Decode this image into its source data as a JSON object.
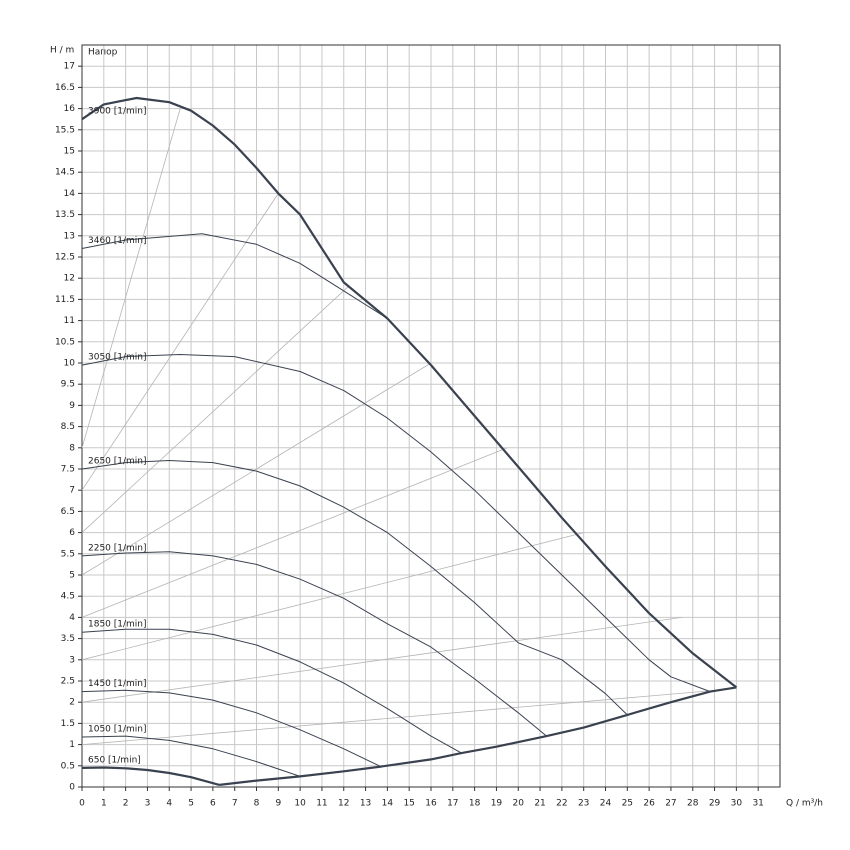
{
  "chart_data": {
    "type": "line",
    "title": "Напор",
    "y_label": "H / m",
    "x_label": "Q / m³/h",
    "xlim": [
      0,
      32
    ],
    "ylim": [
      0,
      17.5
    ],
    "xticks": [
      0,
      1,
      2,
      3,
      4,
      5,
      6,
      7,
      8,
      9,
      10,
      11,
      12,
      13,
      14,
      15,
      16,
      17,
      18,
      19,
      20,
      21,
      22,
      23,
      24,
      25,
      26,
      27,
      28,
      29,
      30,
      31
    ],
    "yticks": [
      0,
      0.5,
      1,
      1.5,
      2,
      2.5,
      3,
      3.5,
      4,
      4.5,
      5,
      5.5,
      6,
      6.5,
      7,
      7.5,
      8,
      8.5,
      9,
      9.5,
      10,
      10.5,
      11,
      11.5,
      12,
      12.5,
      13,
      13.5,
      14,
      14.5,
      15,
      15.5,
      16,
      16.5,
      17
    ],
    "grid": true,
    "series": [
      {
        "name": "3900 [1/min]",
        "color": "#3a4250",
        "line_width": 2.2,
        "x": [
          0,
          1,
          2.5,
          4,
          5,
          6,
          7,
          8,
          9,
          10,
          11,
          12,
          14,
          16,
          18,
          20,
          22,
          24,
          26,
          28,
          30
        ],
        "values": [
          15.75,
          16.1,
          16.25,
          16.15,
          15.95,
          15.6,
          15.15,
          14.6,
          14.0,
          13.5,
          12.7,
          11.9,
          11.05,
          9.95,
          8.75,
          7.55,
          6.35,
          5.2,
          4.1,
          3.15,
          2.35
        ]
      },
      {
        "name": "3460 [1/min]",
        "color": "#3a4250",
        "line_width": 1,
        "x": [
          0,
          2,
          5.5,
          8,
          10,
          12,
          14
        ],
        "values": [
          12.7,
          12.9,
          13.05,
          12.8,
          12.35,
          11.7,
          11.05
        ]
      },
      {
        "name": "3050 [1/min]",
        "color": "#3a4250",
        "line_width": 1,
        "x": [
          0,
          2,
          4.5,
          7,
          10,
          12,
          14,
          16,
          18,
          20,
          22,
          24,
          26,
          27,
          28.8
        ],
        "values": [
          9.95,
          10.15,
          10.2,
          10.15,
          9.8,
          9.35,
          8.7,
          7.9,
          7.0,
          6.0,
          5.0,
          4.0,
          3.0,
          2.6,
          2.25
        ]
      },
      {
        "name": "2650 [1/min]",
        "color": "#3a4250",
        "line_width": 1,
        "x": [
          0,
          2,
          4,
          6,
          8,
          10,
          12,
          14,
          16,
          18,
          20,
          22,
          24,
          25
        ],
        "values": [
          7.5,
          7.65,
          7.7,
          7.65,
          7.45,
          7.1,
          6.6,
          6.0,
          5.2,
          4.35,
          3.4,
          3.0,
          2.2,
          1.7
        ]
      },
      {
        "name": "2250 [1/min]",
        "color": "#3a4250",
        "line_width": 1,
        "x": [
          0,
          2,
          4,
          6,
          8,
          10,
          12,
          14,
          16,
          18,
          20,
          21.3
        ],
        "values": [
          5.45,
          5.52,
          5.55,
          5.45,
          5.25,
          4.9,
          4.45,
          3.85,
          3.3,
          2.55,
          1.75,
          1.2
        ]
      },
      {
        "name": "1850 [1/min]",
        "color": "#3a4250",
        "line_width": 1,
        "x": [
          0,
          2,
          4,
          6,
          8,
          10,
          12,
          14,
          16,
          17.4
        ],
        "values": [
          3.65,
          3.72,
          3.72,
          3.6,
          3.35,
          2.95,
          2.45,
          1.85,
          1.2,
          0.8
        ]
      },
      {
        "name": "1450 [1/min]",
        "color": "#3a4250",
        "line_width": 1,
        "x": [
          0,
          2,
          4,
          6,
          8,
          10,
          12,
          13.7
        ],
        "values": [
          2.25,
          2.28,
          2.22,
          2.05,
          1.75,
          1.35,
          0.9,
          0.48
        ]
      },
      {
        "name": "1050 [1/min]",
        "color": "#3a4250",
        "line_width": 1,
        "x": [
          0,
          2,
          4,
          6,
          8,
          10
        ],
        "values": [
          1.18,
          1.2,
          1.1,
          0.9,
          0.6,
          0.25
        ]
      },
      {
        "name": "650 [1/min]",
        "color": "#3a4250",
        "line_width": 2.2,
        "x": [
          0,
          1,
          2,
          3,
          4,
          5,
          6.3
        ],
        "values": [
          0.45,
          0.46,
          0.44,
          0.4,
          0.33,
          0.23,
          0.05
        ]
      }
    ],
    "limits": [
      {
        "color": "#3a4250",
        "line_width": 2.2,
        "x": [
          6.3,
          8,
          10,
          12,
          13.7,
          16,
          17.4,
          19,
          21.3,
          23,
          25,
          27,
          28.8,
          30
        ],
        "values": [
          0.05,
          0.15,
          0.25,
          0.37,
          0.48,
          0.65,
          0.8,
          0.95,
          1.2,
          1.4,
          1.7,
          2.0,
          2.25,
          2.35
        ]
      }
    ],
    "guides": [
      {
        "color": "#b4b4b4",
        "x": [
          0,
          4.5
        ],
        "values": [
          8,
          16.0
        ]
      },
      {
        "color": "#b4b4b4",
        "x": [
          0,
          9
        ],
        "values": [
          7,
          14
        ]
      },
      {
        "color": "#b4b4b4",
        "x": [
          0,
          12.2
        ],
        "values": [
          6,
          11.8
        ]
      },
      {
        "color": "#b4b4b4",
        "x": [
          0,
          16
        ],
        "values": [
          5,
          10
        ]
      },
      {
        "color": "#b4b4b4",
        "x": [
          0,
          19.5
        ],
        "values": [
          4,
          8
        ]
      },
      {
        "color": "#b4b4b4",
        "x": [
          0,
          23
        ],
        "values": [
          3,
          6
        ]
      },
      {
        "color": "#b4b4b4",
        "x": [
          0,
          27.5
        ],
        "values": [
          2,
          4
        ]
      },
      {
        "color": "#b4b4b4",
        "x": [
          0,
          29.5
        ],
        "values": [
          1,
          2.3
        ]
      }
    ]
  }
}
